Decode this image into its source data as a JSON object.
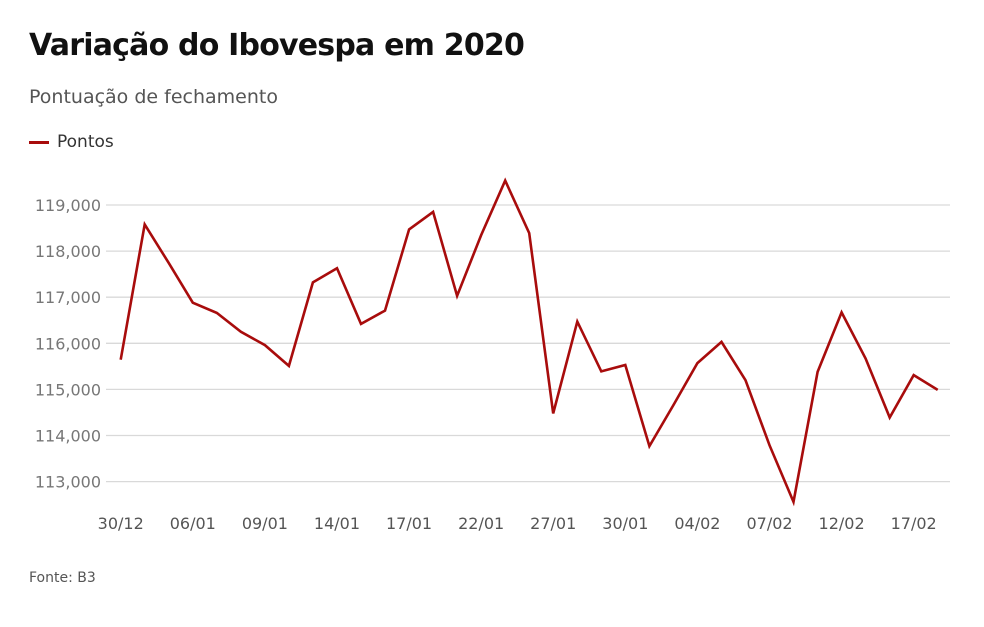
{
  "colors": {
    "series": "#a80c0c",
    "grid": "#d9d9d9"
  },
  "source": "Fonte: B3",
  "chart_data": {
    "type": "line",
    "title": "Variação do Ibovespa em 2020",
    "subtitle": "Pontuação de fechamento",
    "legend_position": "top-left",
    "grid": true,
    "ylim": [
      113000,
      119000
    ],
    "yticks": [
      "113,000",
      "114,000",
      "115,000",
      "116,000",
      "117,000",
      "118,000",
      "119,000"
    ],
    "ytick_values": [
      113000,
      114000,
      115000,
      116000,
      117000,
      118000,
      119000
    ],
    "x": [
      "30/12",
      "02/01",
      "03/01",
      "06/01",
      "07/01",
      "08/01",
      "09/01",
      "10/01",
      "13/01",
      "14/01",
      "15/01",
      "16/01",
      "17/01",
      "20/01",
      "21/01",
      "22/01",
      "23/01",
      "24/01",
      "27/01",
      "28/01",
      "29/01",
      "30/01",
      "31/01",
      "03/02",
      "04/02",
      "05/02",
      "06/02",
      "07/02",
      "10/02",
      "11/02",
      "12/02",
      "13/02",
      "14/02",
      "17/02",
      "18/02"
    ],
    "xticks": [
      "30/12",
      "06/01",
      "09/01",
      "14/01",
      "17/01",
      "22/01",
      "27/01",
      "30/01",
      "04/02",
      "07/02",
      "12/02",
      "17/02"
    ],
    "series": [
      {
        "name": "Pontos",
        "values": [
          115645,
          118580,
          117740,
          116880,
          116660,
          116250,
          115960,
          115510,
          117320,
          117630,
          116420,
          116710,
          118470,
          118850,
          117030,
          118350,
          119530,
          118390,
          114480,
          116470,
          115390,
          115530,
          113770,
          114660,
          115570,
          116030,
          115200,
          113790,
          112560,
          115380,
          116670,
          115670,
          114390,
          115310,
          114990
        ]
      }
    ]
  }
}
